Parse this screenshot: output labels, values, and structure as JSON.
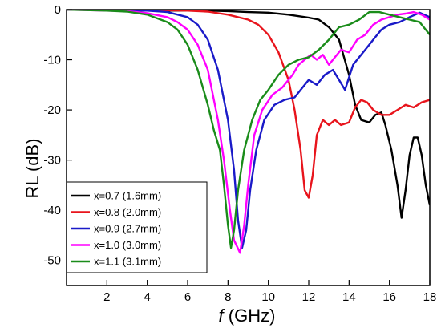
{
  "chart_data": {
    "type": "line",
    "xlabel_symbol": "f",
    "xlabel_unit": "(GHz)",
    "ylabel": "RL (dB)",
    "xlim": [
      0,
      18
    ],
    "ylim": [
      -55,
      0
    ],
    "x_ticks": [
      2,
      4,
      6,
      8,
      10,
      12,
      14,
      16,
      18
    ],
    "y_ticks": [
      0,
      -10,
      -20,
      -30,
      -40,
      -50
    ],
    "grid": false,
    "legend_position": "bottom-left",
    "series": [
      {
        "name": "x=0.7 (1.6mm)",
        "color": "#000000",
        "points": [
          [
            0,
            0
          ],
          [
            2,
            -0.1
          ],
          [
            4,
            -0.2
          ],
          [
            6,
            -0.2
          ],
          [
            7,
            -0.2
          ],
          [
            8,
            -0.3
          ],
          [
            9,
            -0.5
          ],
          [
            10,
            -0.6
          ],
          [
            11,
            -1.0
          ],
          [
            12,
            -1.6
          ],
          [
            12.5,
            -2.0
          ],
          [
            13,
            -3.5
          ],
          [
            13.5,
            -6
          ],
          [
            14,
            -13
          ],
          [
            14.3,
            -19
          ],
          [
            14.6,
            -22
          ],
          [
            15,
            -22.5
          ],
          [
            15.3,
            -21
          ],
          [
            15.6,
            -20.5
          ],
          [
            15.8,
            -23
          ],
          [
            16.1,
            -28
          ],
          [
            16.4,
            -35
          ],
          [
            16.6,
            -41.5
          ],
          [
            16.8,
            -36
          ],
          [
            17.0,
            -29
          ],
          [
            17.2,
            -25.5
          ],
          [
            17.4,
            -25.5
          ],
          [
            17.6,
            -29
          ],
          [
            17.8,
            -35
          ],
          [
            18,
            -39
          ]
        ]
      },
      {
        "name": "x=0.8 (2.0mm)",
        "color": "#e8141c",
        "points": [
          [
            0,
            0
          ],
          [
            2,
            -0.1
          ],
          [
            4,
            -0.1
          ],
          [
            6,
            -0.2
          ],
          [
            7,
            -0.4
          ],
          [
            8,
            -1.0
          ],
          [
            9,
            -2.0
          ],
          [
            9.5,
            -3.0
          ],
          [
            10,
            -5.0
          ],
          [
            10.5,
            -8.5
          ],
          [
            11,
            -14
          ],
          [
            11.3,
            -20
          ],
          [
            11.6,
            -28
          ],
          [
            11.8,
            -36
          ],
          [
            12,
            -37.5
          ],
          [
            12.2,
            -33
          ],
          [
            12.4,
            -25
          ],
          [
            12.7,
            -22
          ],
          [
            13,
            -23
          ],
          [
            13.3,
            -22
          ],
          [
            13.6,
            -23
          ],
          [
            14,
            -22.5
          ],
          [
            14.3,
            -19.5
          ],
          [
            14.6,
            -18
          ],
          [
            14.9,
            -18.5
          ],
          [
            15.2,
            -20
          ],
          [
            15.6,
            -21
          ],
          [
            16,
            -21
          ],
          [
            16.4,
            -20
          ],
          [
            16.8,
            -19
          ],
          [
            17.2,
            -19.5
          ],
          [
            17.6,
            -18.5
          ],
          [
            18,
            -18
          ]
        ]
      },
      {
        "name": "x=0.9 (2.7mm)",
        "color": "#1a1ac8",
        "points": [
          [
            0,
            0
          ],
          [
            2,
            -0.1
          ],
          [
            4,
            -0.2
          ],
          [
            5,
            -0.5
          ],
          [
            6,
            -1.5
          ],
          [
            6.5,
            -3
          ],
          [
            7,
            -6
          ],
          [
            7.5,
            -12
          ],
          [
            8,
            -22
          ],
          [
            8.3,
            -32
          ],
          [
            8.5,
            -42
          ],
          [
            8.7,
            -47.5
          ],
          [
            8.9,
            -44
          ],
          [
            9.1,
            -36
          ],
          [
            9.4,
            -28
          ],
          [
            9.8,
            -22
          ],
          [
            10.3,
            -19
          ],
          [
            10.8,
            -18
          ],
          [
            11.3,
            -17.5
          ],
          [
            11.6,
            -16
          ],
          [
            12,
            -14
          ],
          [
            12.4,
            -15
          ],
          [
            12.8,
            -13
          ],
          [
            13.2,
            -12
          ],
          [
            13.5,
            -14
          ],
          [
            13.8,
            -16
          ],
          [
            14,
            -13.5
          ],
          [
            14.2,
            -11
          ],
          [
            14.5,
            -9.5
          ],
          [
            14.8,
            -8
          ],
          [
            15.2,
            -6
          ],
          [
            15.6,
            -4
          ],
          [
            16,
            -3
          ],
          [
            16.5,
            -2.5
          ],
          [
            17,
            -1.5
          ],
          [
            17.5,
            -0.6
          ],
          [
            18,
            -1.5
          ]
        ]
      },
      {
        "name": "x=1.0 (3.0mm)",
        "color": "#ff00ff",
        "points": [
          [
            0,
            0
          ],
          [
            2,
            -0.2
          ],
          [
            3,
            -0.3
          ],
          [
            4,
            -0.7
          ],
          [
            5,
            -1.5
          ],
          [
            5.5,
            -2.5
          ],
          [
            6,
            -4
          ],
          [
            6.5,
            -7
          ],
          [
            7,
            -12
          ],
          [
            7.5,
            -22
          ],
          [
            7.8,
            -30
          ],
          [
            8.1,
            -40
          ],
          [
            8.3,
            -46
          ],
          [
            8.6,
            -48.5
          ],
          [
            8.8,
            -43
          ],
          [
            9,
            -35
          ],
          [
            9.3,
            -25
          ],
          [
            9.7,
            -20
          ],
          [
            10.2,
            -17
          ],
          [
            10.7,
            -15.5
          ],
          [
            11.2,
            -13
          ],
          [
            11.5,
            -11
          ],
          [
            11.8,
            -10
          ],
          [
            12.1,
            -9
          ],
          [
            12.4,
            -10
          ],
          [
            12.7,
            -9
          ],
          [
            13,
            -11
          ],
          [
            13.3,
            -9.5
          ],
          [
            13.6,
            -8
          ],
          [
            14,
            -8.5
          ],
          [
            14.4,
            -6
          ],
          [
            14.8,
            -5
          ],
          [
            15.2,
            -3
          ],
          [
            15.6,
            -2
          ],
          [
            16,
            -1.5
          ],
          [
            16.4,
            -1
          ],
          [
            16.8,
            -0.8
          ],
          [
            17.2,
            -0.5
          ],
          [
            17.6,
            -1
          ],
          [
            18,
            -2
          ]
        ]
      },
      {
        "name": "x=1.1 (3.1mm)",
        "color": "#1a8c1a",
        "points": [
          [
            0,
            0
          ],
          [
            2,
            -0.2
          ],
          [
            3,
            -0.4
          ],
          [
            4,
            -1.0
          ],
          [
            5,
            -2.5
          ],
          [
            5.5,
            -4
          ],
          [
            6,
            -7
          ],
          [
            6.5,
            -12
          ],
          [
            7,
            -19
          ],
          [
            7.3,
            -24
          ],
          [
            7.6,
            -28
          ],
          [
            7.8,
            -35
          ],
          [
            8,
            -43
          ],
          [
            8.15,
            -47.5
          ],
          [
            8.3,
            -44
          ],
          [
            8.5,
            -36
          ],
          [
            8.8,
            -28
          ],
          [
            9.2,
            -22
          ],
          [
            9.6,
            -18
          ],
          [
            10,
            -16
          ],
          [
            10.5,
            -13
          ],
          [
            11,
            -11
          ],
          [
            11.5,
            -10
          ],
          [
            12,
            -9.5
          ],
          [
            12.5,
            -8
          ],
          [
            13,
            -6
          ],
          [
            13.5,
            -3.5
          ],
          [
            14,
            -3
          ],
          [
            14.5,
            -2
          ],
          [
            15,
            -0.5
          ],
          [
            15.5,
            -0.5
          ],
          [
            16,
            -1
          ],
          [
            16.5,
            -1.5
          ],
          [
            17,
            -2
          ],
          [
            17.5,
            -2.5
          ],
          [
            18,
            -5
          ]
        ]
      }
    ]
  }
}
